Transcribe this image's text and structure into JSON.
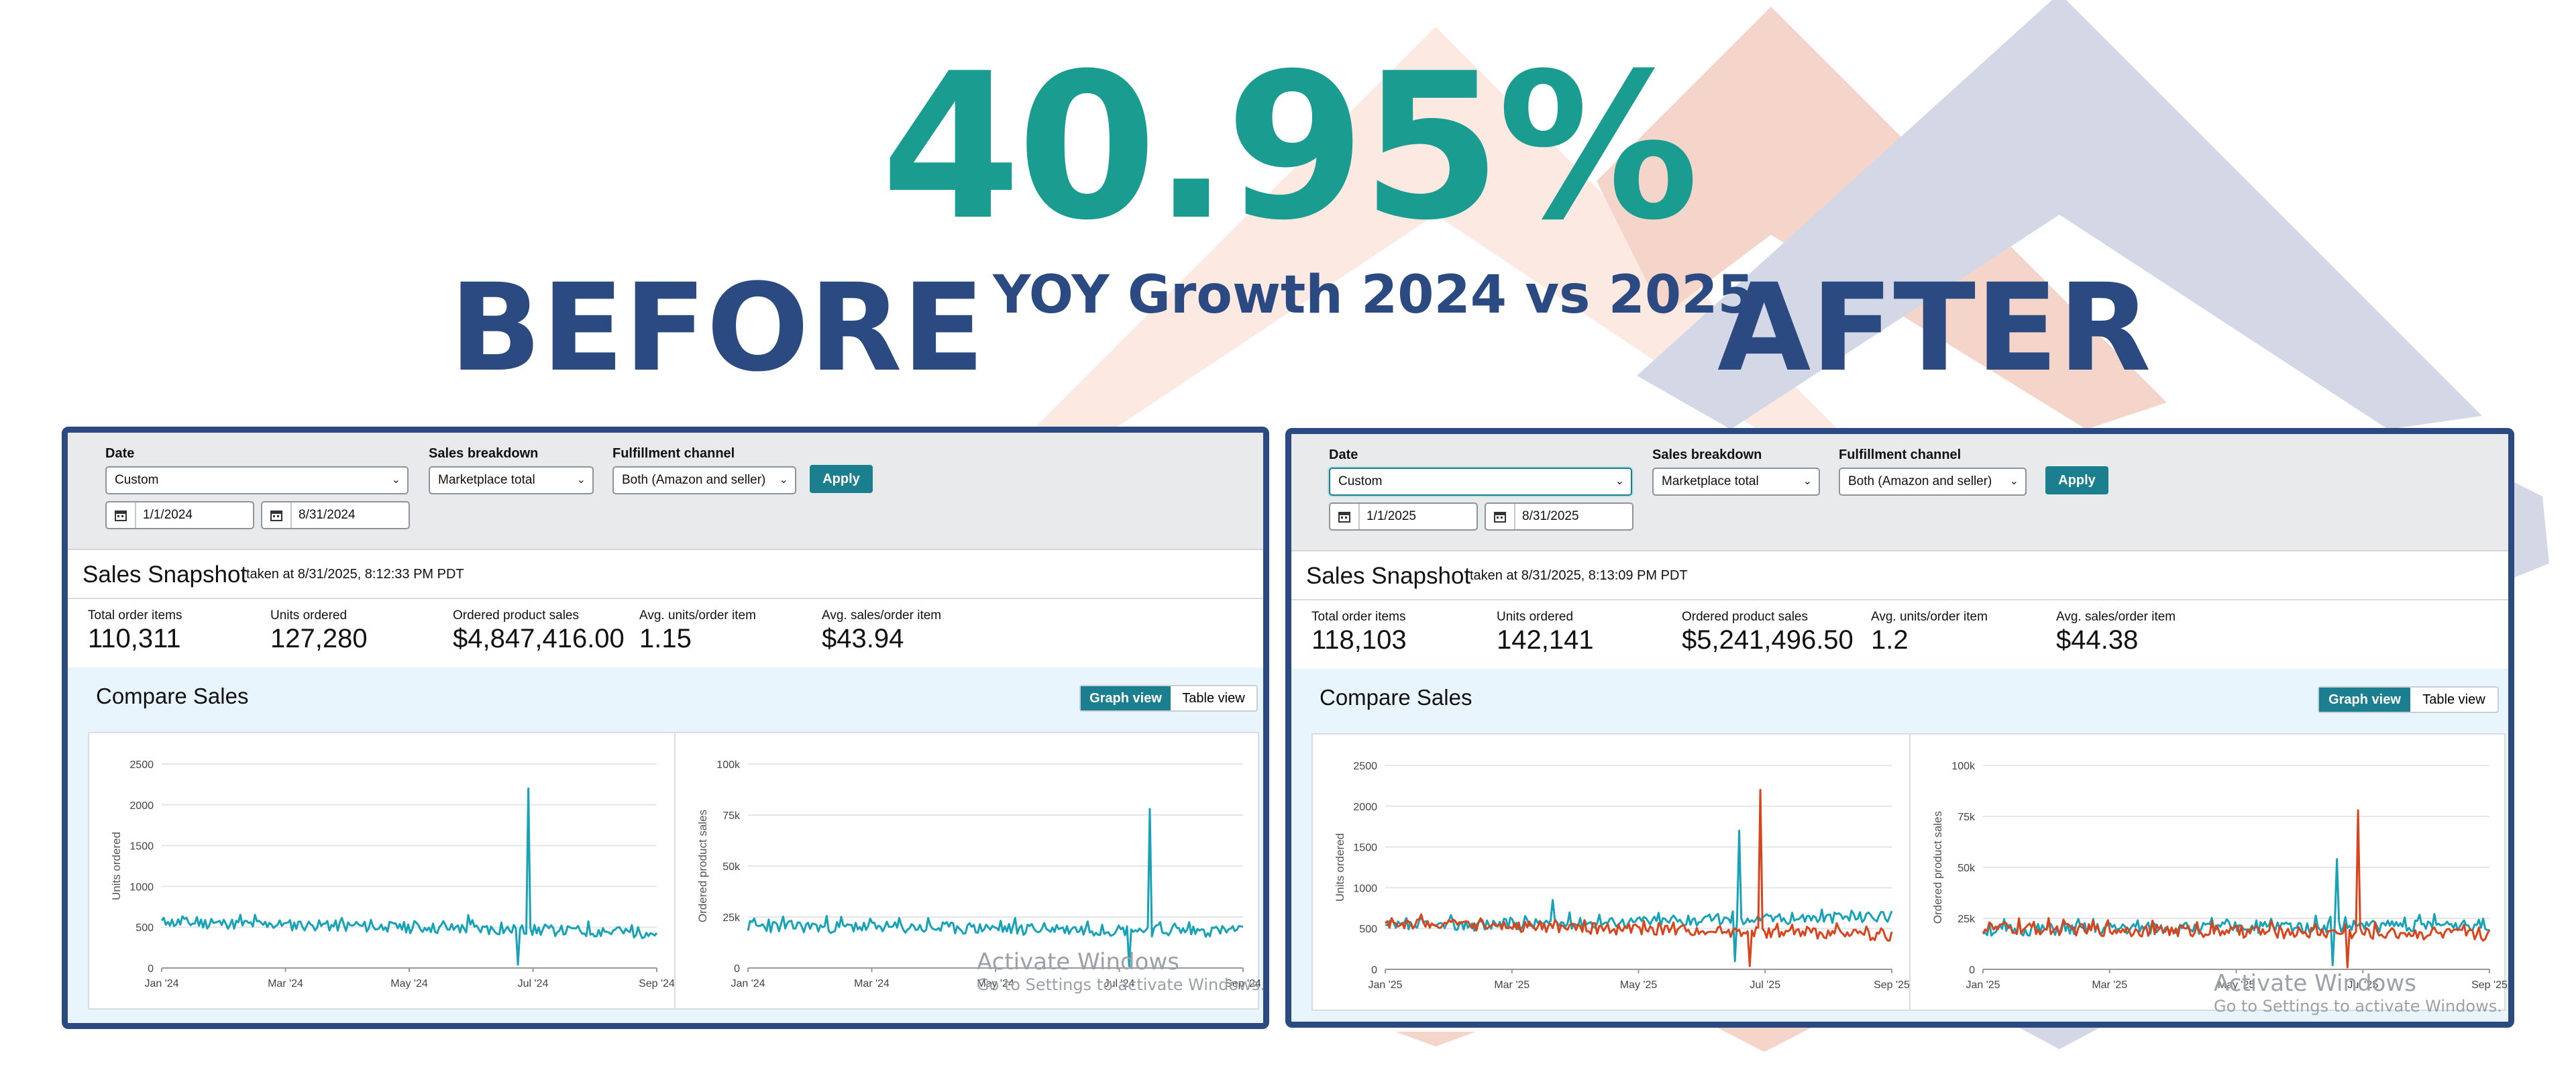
{
  "headline": {
    "growth_value": "40.95%",
    "growth_label": "YOY Growth 2024 vs 2025",
    "before_label": "BEFORE",
    "after_label": "AFTER"
  },
  "colors": {
    "teal_accent": "#1a9d90",
    "navy": "#2b4a82",
    "series_current": "#17a2b8",
    "series_compare": "#d9441c",
    "bg_peach": "#f7d9cf",
    "bg_lavender": "#d3d7e6"
  },
  "before": {
    "filters": {
      "date_label": "Date",
      "date_value": "Custom",
      "start_date": "1/1/2024",
      "end_date": "8/31/2024",
      "breakdown_label": "Sales breakdown",
      "breakdown_value": "Marketplace total",
      "channel_label": "Fulfillment channel",
      "channel_value": "Both (Amazon and seller)",
      "apply_label": "Apply"
    },
    "snapshot": {
      "title": "Sales Snapshot",
      "taken_at": "taken at 8/31/2025, 8:12:33 PM PDT",
      "metrics": [
        {
          "label": "Total order items",
          "value": "110,311"
        },
        {
          "label": "Units ordered",
          "value": "127,280"
        },
        {
          "label": "Ordered product sales",
          "value": "$4,847,416.00"
        },
        {
          "label": "Avg. units/order item",
          "value": "1.15"
        },
        {
          "label": "Avg. sales/order item",
          "value": "$43.94"
        }
      ]
    },
    "compare": {
      "title": "Compare Sales",
      "graph_view": "Graph view",
      "table_view": "Table view",
      "active_view": "graph"
    },
    "chart_data": [
      {
        "type": "line",
        "ylabel": "Units ordered",
        "ylim": [
          0,
          2500
        ],
        "yticks": [
          "0",
          "500",
          "1000",
          "1500",
          "2000",
          "2500"
        ],
        "xticks": [
          "Jan '24",
          "Mar '24",
          "May '24",
          "Jul '24",
          "Sep '24"
        ],
        "series": [
          {
            "color": "#17a2b8",
            "baseline": 560,
            "baseline_end": 430,
            "noise": 70,
            "spikes": [
              {
                "pos": 0.74,
                "value": 2200
              },
              {
                "pos": 0.72,
                "value": 40
              },
              {
                "pos": 0.62,
                "value": 650
              }
            ]
          }
        ]
      },
      {
        "type": "line",
        "ylabel": "Ordered product sales",
        "ylim": [
          0,
          100000
        ],
        "yticks": [
          "0",
          "25k",
          "50k",
          "75k",
          "100k"
        ],
        "xticks": [
          "Jan '24",
          "Mar '24",
          "May '24",
          "Jul '24",
          "Sep '24"
        ],
        "series": [
          {
            "color": "#17a2b8",
            "baseline": 20500,
            "baseline_end": 18000,
            "noise": 3000,
            "spikes": [
              {
                "pos": 0.81,
                "value": 78000
              },
              {
                "pos": 0.77,
                "value": 1000
              }
            ]
          }
        ]
      }
    ]
  },
  "after": {
    "filters": {
      "date_label": "Date",
      "date_value": "Custom",
      "start_date": "1/1/2025",
      "end_date": "8/31/2025",
      "breakdown_label": "Sales breakdown",
      "breakdown_value": "Marketplace total",
      "channel_label": "Fulfillment channel",
      "channel_value": "Both (Amazon and seller)",
      "apply_label": "Apply"
    },
    "snapshot": {
      "title": "Sales Snapshot",
      "taken_at": "taken at 8/31/2025, 8:13:09 PM PDT",
      "metrics": [
        {
          "label": "Total order items",
          "value": "118,103"
        },
        {
          "label": "Units ordered",
          "value": "142,141"
        },
        {
          "label": "Ordered product sales",
          "value": "$5,241,496.50"
        },
        {
          "label": "Avg. units/order item",
          "value": "1.2"
        },
        {
          "label": "Avg. sales/order item",
          "value": "$44.38"
        }
      ]
    },
    "compare": {
      "title": "Compare Sales",
      "graph_view": "Graph view",
      "table_view": "Table view",
      "active_view": "graph"
    },
    "chart_data": [
      {
        "type": "line",
        "ylabel": "Units ordered",
        "ylim": [
          0,
          2500
        ],
        "yticks": [
          "0",
          "500",
          "1000",
          "1500",
          "2000",
          "2500"
        ],
        "xticks": [
          "Jan '25",
          "Mar '25",
          "May '25",
          "Jul '25",
          "Sep '25"
        ],
        "series": [
          {
            "color": "#17a2b8",
            "baseline": 520,
            "baseline_end": 650,
            "noise": 70,
            "spikes": [
              {
                "pos": 0.7,
                "value": 1700
              },
              {
                "pos": 0.33,
                "value": 850
              },
              {
                "pos": 0.69,
                "value": 100
              }
            ]
          },
          {
            "color": "#d9441c",
            "baseline": 560,
            "baseline_end": 420,
            "noise": 70,
            "spikes": [
              {
                "pos": 0.74,
                "value": 2200
              },
              {
                "pos": 0.72,
                "value": 40
              }
            ]
          }
        ]
      },
      {
        "type": "line",
        "ylabel": "Ordered product sales",
        "ylim": [
          0,
          100000
        ],
        "yticks": [
          "0",
          "25k",
          "50k",
          "75k",
          "100k"
        ],
        "xticks": [
          "Jan '25",
          "Mar '25",
          "May '25",
          "Jul '25",
          "Sep '25"
        ],
        "series": [
          {
            "color": "#17a2b8",
            "baseline": 19000,
            "baseline_end": 22000,
            "noise": 3000,
            "spikes": [
              {
                "pos": 0.7,
                "value": 54000
              },
              {
                "pos": 0.69,
                "value": 2000
              }
            ]
          },
          {
            "color": "#d9441c",
            "baseline": 20000,
            "baseline_end": 17000,
            "noise": 3000,
            "spikes": [
              {
                "pos": 0.74,
                "value": 78000
              },
              {
                "pos": 0.72,
                "value": 1000
              }
            ]
          }
        ]
      }
    ]
  },
  "watermark": {
    "title": "Activate Windows",
    "subtitle": "Go to Settings to activate Windows."
  }
}
